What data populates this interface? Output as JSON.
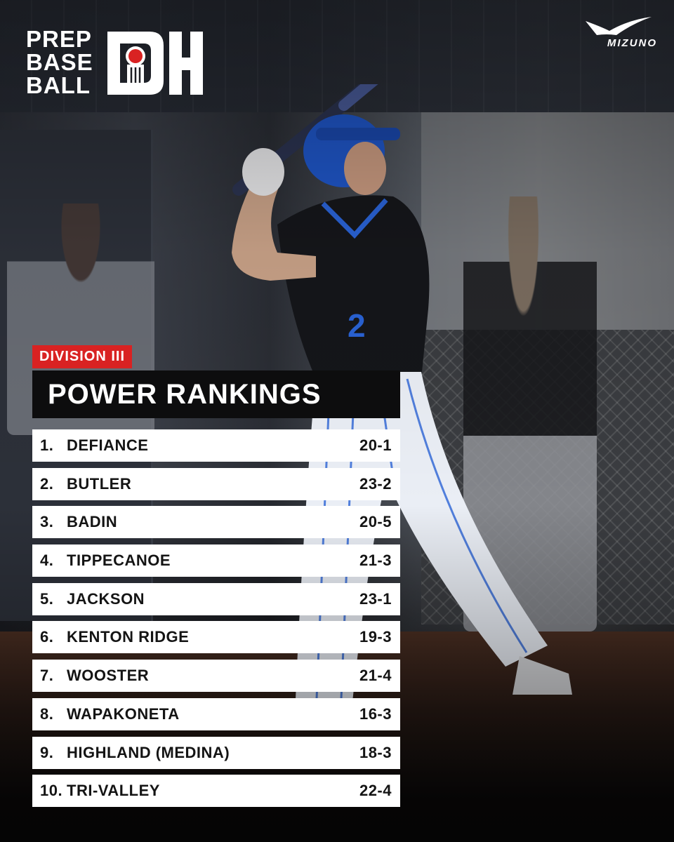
{
  "header": {
    "logo_lines": [
      "PREP",
      "BASE",
      "BALL"
    ],
    "state_mark": "OH",
    "sponsor": "MIZUNO"
  },
  "division_label": "DIVISION III",
  "title": "POWER RANKINGS",
  "rankings": [
    {
      "rank": "1.",
      "team": "DEFIANCE",
      "record": "20-1"
    },
    {
      "rank": "2.",
      "team": "BUTLER",
      "record": "23-2"
    },
    {
      "rank": "3.",
      "team": "BADIN",
      "record": "20-5"
    },
    {
      "rank": "4.",
      "team": "TIPPECANOE",
      "record": "21-3"
    },
    {
      "rank": "5.",
      "team": "JACKSON",
      "record": "23-1"
    },
    {
      "rank": "6.",
      "team": "KENTON RIDGE",
      "record": "19-3"
    },
    {
      "rank": "7.",
      "team": "WOOSTER",
      "record": "21-4"
    },
    {
      "rank": "8.",
      "team": "WAPAKONETA",
      "record": "16-3"
    },
    {
      "rank": "9.",
      "team": "HIGHLAND (MEDINA)",
      "record": "18-3"
    },
    {
      "rank": "10.",
      "team": "TRI-VALLEY",
      "record": "22-4"
    }
  ],
  "colors": {
    "accent_red": "#d92222",
    "title_bar": "#0d0d0e",
    "row_bg": "#ffffff",
    "row_text": "#141414"
  }
}
